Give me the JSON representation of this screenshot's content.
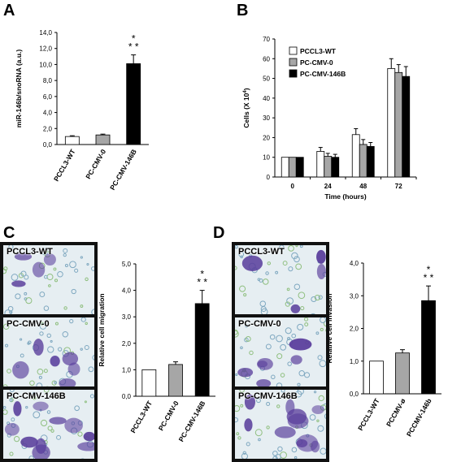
{
  "panels": {
    "A": "A",
    "B": "B",
    "C": "C",
    "D": "D"
  },
  "micrographs": {
    "C": [
      "PCCL3-WT",
      "PC-CMV-0",
      "PC-CMV-146B"
    ],
    "D": [
      "PCCL3-WT",
      "PC-CMV-0",
      "PC-CMV-146B"
    ]
  },
  "colors": {
    "white_bar": "#ffffff",
    "gray_bar": "#a6a6a6",
    "black_bar": "#000000",
    "stain_purple": "#5a3f9c",
    "stain_background": "#e6eef2"
  },
  "chart_data": [
    {
      "id": "A",
      "type": "bar",
      "categories": [
        "PCCL3-WT",
        "PC-CMV-0",
        "PC-CMV-146B"
      ],
      "values": [
        1.0,
        1.2,
        10.1
      ],
      "errors": [
        0.1,
        0.1,
        1.1
      ],
      "bar_colors": [
        "#ffffff",
        "#a6a6a6",
        "#000000"
      ],
      "ylabel": "miR-146b/snoRNA (a.u.)",
      "ylim": [
        0,
        14
      ],
      "yticks": [
        "0,0",
        "2,0",
        "4,0",
        "6,0",
        "8,0",
        "10,0",
        "12,0",
        "14,0"
      ],
      "significance": [
        "",
        "",
        "* * *"
      ]
    },
    {
      "id": "B",
      "type": "bar",
      "categories": [
        "0",
        "24",
        "48",
        "72"
      ],
      "series": [
        {
          "name": "PCCL3-WT",
          "color": "#ffffff",
          "values": [
            10,
            13,
            21.5,
            55
          ],
          "errors": [
            0,
            2,
            3,
            5
          ]
        },
        {
          "name": "PC-CMV-0",
          "color": "#a6a6a6",
          "values": [
            10,
            10.5,
            16.5,
            53
          ],
          "errors": [
            0,
            1.5,
            2.5,
            4
          ]
        },
        {
          "name": "PC-CMV-146B",
          "color": "#000000",
          "values": [
            10,
            10,
            15.5,
            51
          ],
          "errors": [
            0,
            1.5,
            2,
            5
          ]
        }
      ],
      "xlabel": "Time (hours)",
      "ylabel": "Cells (X 10",
      "ylabel_sup": "4",
      "ylabel_end": ")",
      "ylim": [
        0,
        70
      ],
      "yticks": [
        "0",
        "10",
        "20",
        "30",
        "40",
        "50",
        "60",
        "70"
      ],
      "legend": "top-left"
    },
    {
      "id": "C",
      "type": "bar",
      "categories": [
        "PCCL3-WT",
        "PC-CMV-0",
        "PC-CMV-146B"
      ],
      "values": [
        1.0,
        1.2,
        3.5
      ],
      "errors": [
        0,
        0.1,
        0.5
      ],
      "bar_colors": [
        "#ffffff",
        "#a6a6a6",
        "#000000"
      ],
      "ylabel": "Relative cell migration",
      "ylim": [
        0,
        5
      ],
      "yticks": [
        "0,0",
        "1,0",
        "2,0",
        "3,0",
        "4,0",
        "5,0"
      ],
      "significance": [
        "",
        "",
        "* * *"
      ]
    },
    {
      "id": "D",
      "type": "bar",
      "categories": [
        "PCCL3-WT",
        "PCCMV-ø",
        "PCCMV-146b"
      ],
      "values": [
        1.0,
        1.25,
        2.85
      ],
      "errors": [
        0,
        0.1,
        0.45
      ],
      "bar_colors": [
        "#ffffff",
        "#a6a6a6",
        "#000000"
      ],
      "ylabel": "Relative cell invasion",
      "ylim": [
        0,
        4
      ],
      "yticks": [
        "0,0",
        "1,0",
        "2,0",
        "3,0",
        "4,0"
      ],
      "significance": [
        "",
        "",
        "* * *"
      ]
    }
  ]
}
